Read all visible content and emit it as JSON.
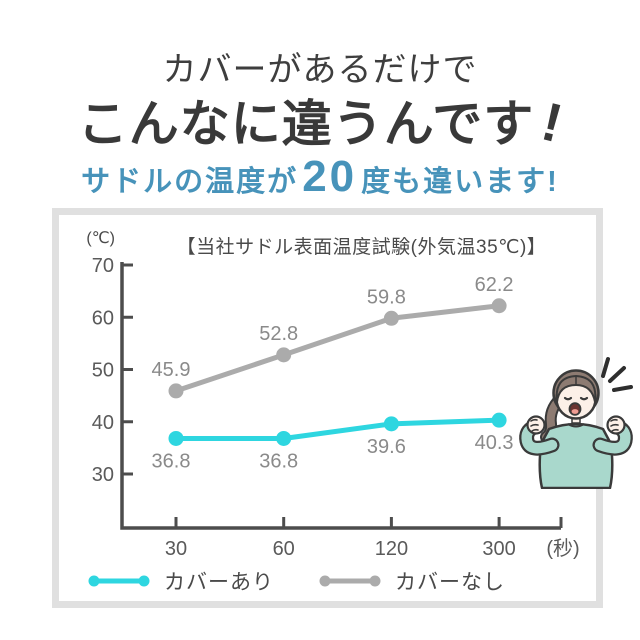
{
  "page": {
    "heading_top": "カバーがあるだけで",
    "headline_main": "こんなに違うんです",
    "headline_exclaim": "!",
    "subtitle_pre": "サドルの温度が",
    "subtitle_num": "20",
    "subtitle_post": "度も違います!"
  },
  "colors": {
    "accent_cyan": "#2ED6E0",
    "series_gray": "#ABABAB",
    "subtitle_blue": "#4793BA",
    "heading_dark": "#3C3C3C",
    "panel_border": "#E0E0E0",
    "axis": "#4D4D4D"
  },
  "chart_data": {
    "type": "line",
    "title": "【当社サドル表面温度試験(外気温35℃)】",
    "y_unit_label": "(℃)",
    "x_unit_label": "(秒)",
    "categories": [
      "30",
      "60",
      "120",
      "300"
    ],
    "y_ticks": [
      70,
      60,
      50,
      40,
      30
    ],
    "ylim": [
      20,
      70
    ],
    "grid": false,
    "legend_position": "bottom-left-inside",
    "series": [
      {
        "name": "カバーあり",
        "color": "#2ED6E0",
        "values": [
          36.8,
          36.8,
          39.6,
          40.3
        ],
        "label_position": "below"
      },
      {
        "name": "カバーなし",
        "color": "#ABABAB",
        "values": [
          45.9,
          52.8,
          59.8,
          62.2
        ],
        "label_position": "above"
      }
    ]
  },
  "illustration": {
    "name": "cheering-woman"
  }
}
